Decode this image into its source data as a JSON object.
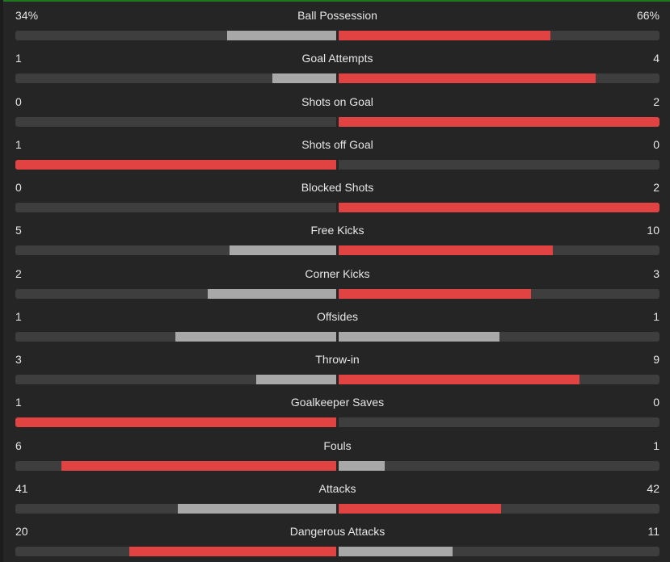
{
  "colors": {
    "leader": "#e14242",
    "trailer": "#a8a8a8",
    "track": "#3e3e3e",
    "accent_top": "#1f7a1f"
  },
  "stats": [
    {
      "name": "Ball Possession",
      "home": "34%",
      "away": "66%",
      "home_val": 34,
      "away_val": 66
    },
    {
      "name": "Goal Attempts",
      "home": "1",
      "away": "4",
      "home_val": 1,
      "away_val": 4
    },
    {
      "name": "Shots on Goal",
      "home": "0",
      "away": "2",
      "home_val": 0,
      "away_val": 2
    },
    {
      "name": "Shots off Goal",
      "home": "1",
      "away": "0",
      "home_val": 1,
      "away_val": 0
    },
    {
      "name": "Blocked Shots",
      "home": "0",
      "away": "2",
      "home_val": 0,
      "away_val": 2
    },
    {
      "name": "Free Kicks",
      "home": "5",
      "away": "10",
      "home_val": 5,
      "away_val": 10
    },
    {
      "name": "Corner Kicks",
      "home": "2",
      "away": "3",
      "home_val": 2,
      "away_val": 3
    },
    {
      "name": "Offsides",
      "home": "1",
      "away": "1",
      "home_val": 1,
      "away_val": 1
    },
    {
      "name": "Throw-in",
      "home": "3",
      "away": "9",
      "home_val": 3,
      "away_val": 9
    },
    {
      "name": "Goalkeeper Saves",
      "home": "1",
      "away": "0",
      "home_val": 1,
      "away_val": 0
    },
    {
      "name": "Fouls",
      "home": "6",
      "away": "1",
      "home_val": 6,
      "away_val": 1
    },
    {
      "name": "Attacks",
      "home": "41",
      "away": "42",
      "home_val": 41,
      "away_val": 42
    },
    {
      "name": "Dangerous Attacks",
      "home": "20",
      "away": "11",
      "home_val": 20,
      "away_val": 11
    }
  ]
}
